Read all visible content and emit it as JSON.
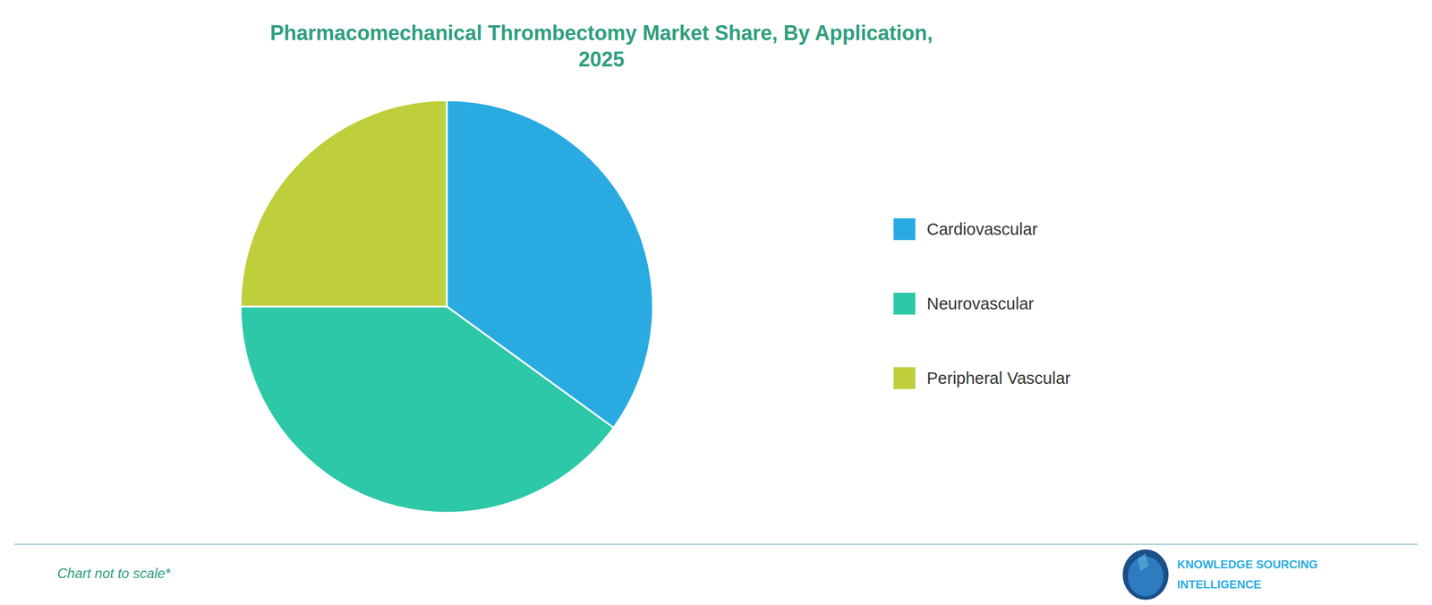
{
  "chart_data": {
    "type": "pie",
    "title": "Pharmacomechanical Thrombectomy Market Share, By Application,\n2025",
    "categories": [
      "Cardiovascular",
      "Neurovascular",
      "Peripheral Vascular"
    ],
    "values": [
      35,
      40,
      25
    ],
    "colors": [
      "#29ABE2",
      "#2DC8A8",
      "#BFCE3B"
    ],
    "legend": "right",
    "annotations": [
      "Chart not to scale*",
      "KNOWLEDGE SOURCING",
      "INTELLIGENCE"
    ]
  }
}
